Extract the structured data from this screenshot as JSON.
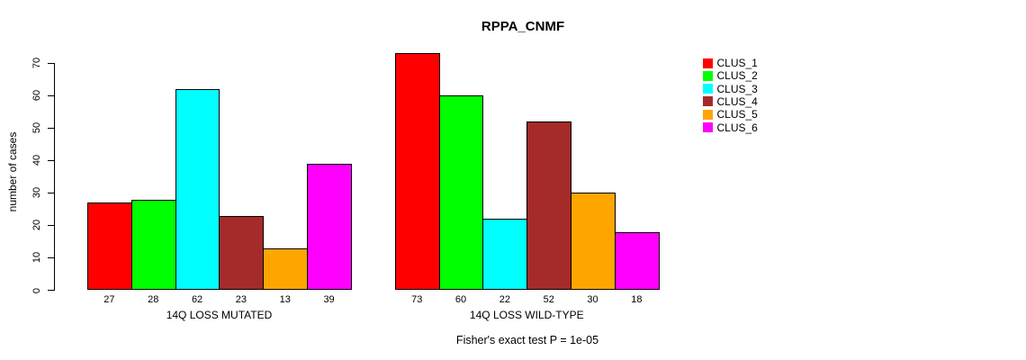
{
  "chart_data": {
    "type": "bar",
    "title": "RPPA_CNMF",
    "ylabel": "number of cases",
    "xlabel": "",
    "ylim": [
      0,
      70
    ],
    "yticks": [
      0,
      10,
      20,
      30,
      40,
      50,
      60,
      70
    ],
    "grid": false,
    "legend_position": "right",
    "series_names": [
      "CLUS_1",
      "CLUS_2",
      "CLUS_3",
      "CLUS_4",
      "CLUS_5",
      "CLUS_6"
    ],
    "series_colors": [
      "#FF0000",
      "#00FF00",
      "#00FFFF",
      "#A52A2A",
      "#FFA500",
      "#FF00FF"
    ],
    "groups": [
      {
        "label": "14Q LOSS MUTATED",
        "values": [
          27,
          28,
          62,
          23,
          13,
          39
        ]
      },
      {
        "label": "14Q LOSS WILD-TYPE",
        "values": [
          73,
          60,
          22,
          52,
          30,
          18
        ]
      }
    ],
    "annotation": "Fisher's exact test P = 1e-05"
  }
}
